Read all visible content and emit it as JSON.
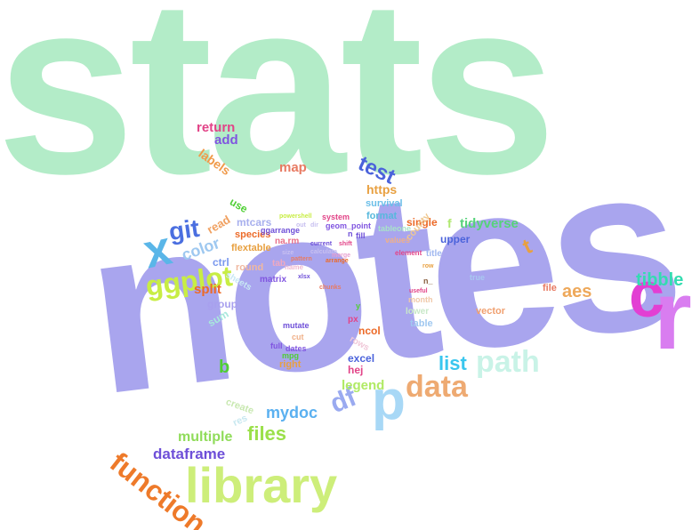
{
  "palette": {
    "mint": "#b3ecc8",
    "lavender": "#a9a5ee",
    "magenta": "#e23fd3",
    "violet": "#d97df0",
    "sky": "#5ab6e8",
    "lime": "#c8ed6e",
    "orange": "#ee8a2c",
    "teal": "#2fd6b2",
    "pink": "#e7457e",
    "purple": "#6a4fd3",
    "green": "#4fcf34",
    "blue": "#4672e0"
  },
  "words": [
    {
      "text": "stats",
      "color": "#b3ecc8"
    },
    {
      "text": "notes",
      "color": "#a9a5ee"
    },
    {
      "text": "r",
      "color": "#d97df0"
    },
    {
      "text": "c",
      "color": "#e23fd3"
    },
    {
      "text": "library",
      "color": "#cdee7a"
    },
    {
      "text": "function",
      "color": "#ee7a2a"
    },
    {
      "text": "p",
      "color": "#a8d8f6"
    },
    {
      "text": "data",
      "color": "#eeaa72"
    },
    {
      "text": "path",
      "color": "#c9f3e7"
    },
    {
      "text": "x",
      "color": "#5ab6e8"
    },
    {
      "text": "ggplot",
      "color": "#c8ed44"
    },
    {
      "text": "git",
      "color": "#4b6fe0"
    },
    {
      "text": "df",
      "color": "#9aaaf0"
    },
    {
      "text": "list",
      "color": "#39c6ee"
    },
    {
      "text": "files",
      "color": "#9be04a"
    },
    {
      "text": "mydoc",
      "color": "#5ab0f0"
    },
    {
      "text": "dataframe",
      "color": "#6e4fd8"
    },
    {
      "text": "multiple",
      "color": "#90dc5a"
    },
    {
      "text": "tibble",
      "color": "#33dcb0"
    },
    {
      "text": "aes",
      "color": "#eea85a"
    },
    {
      "text": "test",
      "color": "#4b63db"
    },
    {
      "text": "t",
      "color": "#e8a040"
    },
    {
      "text": "color",
      "color": "#9ec8f0"
    },
    {
      "text": "legend",
      "color": "#b0ea64"
    },
    {
      "text": "tidyverse",
      "color": "#56d27a"
    },
    {
      "text": "split",
      "color": "#ec6a28"
    },
    {
      "text": "b",
      "color": "#4fcf34"
    },
    {
      "text": "return",
      "color": "#e24488"
    },
    {
      "text": "add",
      "color": "#8055e0"
    },
    {
      "text": "labels",
      "color": "#f09a4a"
    },
    {
      "text": "map",
      "color": "#e87a62"
    },
    {
      "text": "https",
      "color": "#e8a040"
    },
    {
      "text": "survival",
      "color": "#6abee8"
    },
    {
      "text": "format",
      "color": "#56b8dc"
    },
    {
      "text": "single",
      "color": "#ec6a28"
    },
    {
      "text": "upper",
      "color": "#4b63db"
    },
    {
      "text": "read",
      "color": "#f0a060"
    },
    {
      "text": "use",
      "color": "#4fcf34"
    },
    {
      "text": "mtcars",
      "color": "#a8b0ee"
    },
    {
      "text": "species",
      "color": "#ec6a28"
    },
    {
      "text": "flextable",
      "color": "#e8a040"
    },
    {
      "text": "ctrl",
      "color": "#7a98ee"
    },
    {
      "text": "round",
      "color": "#f0b8a0"
    },
    {
      "text": "group",
      "color": "#a8a0ee"
    },
    {
      "text": "sum",
      "color": "#a8e8dc"
    },
    {
      "text": "sheets",
      "color": "#c8e8f4"
    },
    {
      "text": "matrix",
      "color": "#8055e0"
    },
    {
      "text": "tab",
      "color": "#f0a8c0"
    },
    {
      "text": "na.rm",
      "color": "#e8708a"
    },
    {
      "text": "geom_point",
      "color": "#8055e0"
    },
    {
      "text": "ggarrange",
      "color": "#6e4fd8"
    },
    {
      "text": "system",
      "color": "#e24488"
    },
    {
      "text": "powershell",
      "color": "#c8ed44"
    },
    {
      "text": "tableone",
      "color": "#a8e4c8"
    },
    {
      "text": "county",
      "color": "#f0c890"
    },
    {
      "text": "f",
      "color": "#b0e870"
    },
    {
      "text": "values",
      "color": "#f0b088"
    },
    {
      "text": "element",
      "color": "#e24488"
    },
    {
      "text": "fill",
      "color": "#6e4fd8"
    },
    {
      "text": "n",
      "color": "#6e4fd8"
    },
    {
      "text": "mutate",
      "color": "#6e4fd8"
    },
    {
      "text": "cut",
      "color": "#f0b088"
    },
    {
      "text": "full",
      "color": "#8055e0"
    },
    {
      "text": "dates",
      "color": "#8055e0"
    },
    {
      "text": "mpg",
      "color": "#4fcf34"
    },
    {
      "text": "right",
      "color": "#e8a040"
    },
    {
      "text": "excel",
      "color": "#4b63db"
    },
    {
      "text": "hej",
      "color": "#e24488"
    },
    {
      "text": "ncol",
      "color": "#ec6a28"
    },
    {
      "text": "rows",
      "color": "#f0c8d8"
    },
    {
      "text": "vector",
      "color": "#f0a070"
    },
    {
      "text": "file",
      "color": "#e87a62"
    },
    {
      "text": "table",
      "color": "#a0c8f0"
    },
    {
      "text": "month",
      "color": "#f0c8a8"
    },
    {
      "text": "lower",
      "color": "#c8e8c8"
    },
    {
      "text": "true",
      "color": "#a8c8f0"
    },
    {
      "text": "title",
      "color": "#a0b8f0"
    },
    {
      "text": "create",
      "color": "#c8e8b0"
    },
    {
      "text": "res",
      "color": "#c8e8f0"
    },
    {
      "text": "y",
      "color": "#4fcf34"
    },
    {
      "text": "px",
      "color": "#e24488"
    },
    {
      "text": "size",
      "color": "#c8c0f0"
    },
    {
      "text": "name",
      "color": "#f0b8d0"
    },
    {
      "text": "xlsx",
      "color": "#6e4fd8"
    },
    {
      "text": "pattern",
      "color": "#e87a62"
    },
    {
      "text": "arrange",
      "color": "#ec6a28"
    },
    {
      "text": "merge",
      "color": "#e8a0d0"
    },
    {
      "text": "current",
      "color": "#6e4fd8"
    },
    {
      "text": "shift",
      "color": "#e24488"
    },
    {
      "text": "chunks",
      "color": "#e87a62"
    },
    {
      "text": "useful",
      "color": "#e24488"
    },
    {
      "text": "row",
      "color": "#e8a040"
    },
    {
      "text": "n_",
      "color": "#8a6040"
    },
    {
      "text": "out",
      "color": "#c8c0f0"
    },
    {
      "text": "dir",
      "color": "#c8c0f0"
    },
    {
      "text": "calculate",
      "color": "#c8c0f0"
    }
  ]
}
